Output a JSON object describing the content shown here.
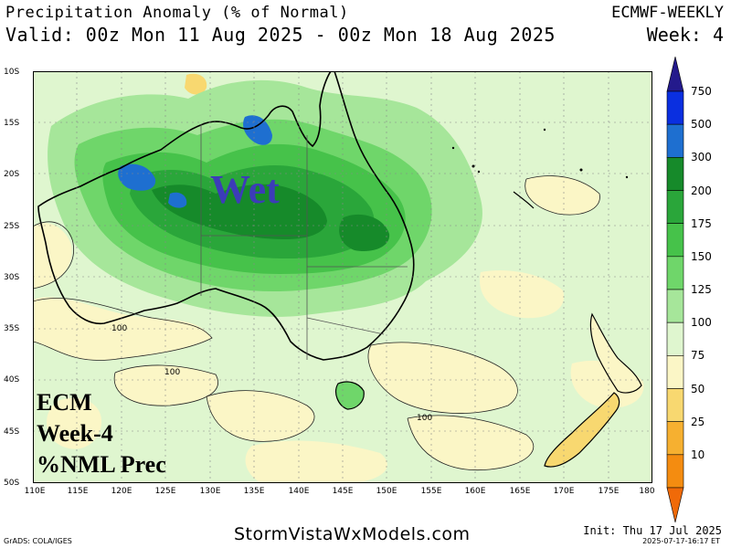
{
  "header": {
    "title": "Precipitation Anomaly (% of Normal)",
    "model": "ECMWF-WEEKLY",
    "valid": "Valid: 00z Mon 11 Aug 2025 - 00z Mon 18 Aug 2025",
    "week": "Week: 4"
  },
  "map": {
    "lat_labels": [
      "10S",
      "15S",
      "20S",
      "25S",
      "30S",
      "35S",
      "40S",
      "45S",
      "50S"
    ],
    "lon_labels": [
      "110E",
      "115E",
      "120E",
      "125E",
      "130E",
      "135E",
      "140E",
      "145E",
      "150E",
      "155E",
      "160E",
      "165E",
      "170E",
      "175E",
      "180"
    ],
    "contour_labels": [
      "100",
      "100",
      "100"
    ],
    "annotation": "Wet",
    "overlay_lines": [
      "ECM",
      "Week-4",
      "%NML Prec"
    ]
  },
  "colorbar": {
    "levels": [
      "750",
      "500",
      "300",
      "200",
      "175",
      "150",
      "125",
      "100",
      "75",
      "50",
      "25",
      "10"
    ],
    "colors": [
      "#241a8c",
      "#0a2fe0",
      "#1e6fd0",
      "#168a2a",
      "#2aa63a",
      "#46c24a",
      "#6fd66a",
      "#a6e69a",
      "#dff6cf",
      "#fbf6c6",
      "#f8d870",
      "#f6b030",
      "#f48c10",
      "#f06a08"
    ]
  },
  "footer": {
    "site": "StormVistaWxModels.com",
    "grads": "GrADS: COLA/IGES",
    "init": "Init: Thu 17 Jul 2025",
    "stamp": "2025-07-17-16:17 ET"
  }
}
